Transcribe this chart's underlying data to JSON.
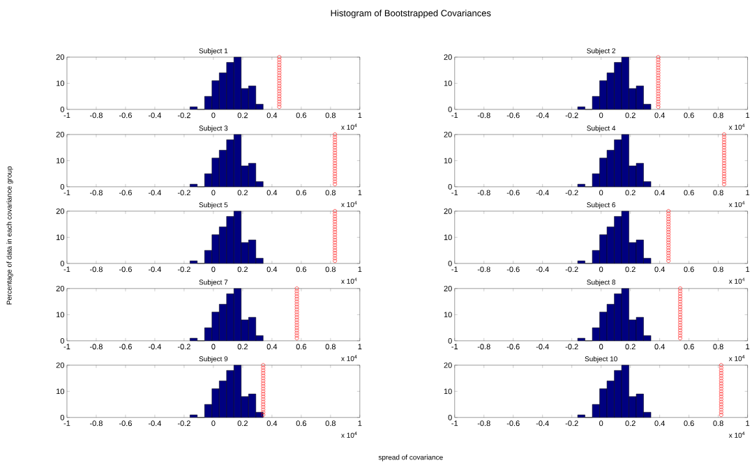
{
  "chart_data": [
    {
      "type": "other",
      "title": "Histogram of Bootstrapped Covariances",
      "xlabel": "spread of covariance",
      "ylabel": "Percentage of data in each covariance group"
    },
    {
      "type": "histogram",
      "title": "Subject 1",
      "bins": [
        -0.16,
        -0.11,
        -0.06,
        -0.01,
        0.04,
        0.09,
        0.14,
        0.19,
        0.24,
        0.29,
        0.34
      ],
      "values": [
        1,
        0,
        5,
        11,
        14,
        18,
        20,
        8,
        9,
        2
      ],
      "color": "#000080",
      "xlim": [
        -1,
        1
      ],
      "xticks": [
        -1,
        -0.8,
        -0.6,
        -0.4,
        -0.2,
        0,
        0.2,
        0.4,
        0.6,
        0.8,
        1
      ],
      "ylim": [
        0,
        20
      ],
      "yticks": [
        0,
        10,
        20
      ],
      "annotations": [
        "x 10$^{4}$"
      ],
      "series": [
        {
          "type": "scatter",
          "marker": "circle",
          "color": "#ff0000",
          "x": [
            0.45,
            0.45,
            0.45,
            0.45,
            0.45,
            0.45,
            0.45,
            0.45,
            0.45,
            0.45,
            0.45,
            0.45,
            0.45,
            0.45,
            0.45,
            0.45,
            0.45,
            0.45,
            0.45,
            0.45
          ],
          "values": [
            1,
            2,
            3,
            4,
            5,
            6,
            7,
            8,
            9,
            10,
            11,
            12,
            13,
            14,
            15,
            16,
            17,
            18,
            19,
            20
          ]
        }
      ]
    },
    {
      "type": "histogram",
      "title": "Subject 2",
      "bins": [
        -0.16,
        -0.11,
        -0.06,
        -0.01,
        0.04,
        0.09,
        0.14,
        0.19,
        0.24,
        0.29,
        0.34
      ],
      "values": [
        1,
        0,
        5,
        11,
        14,
        18,
        20,
        8,
        9,
        2
      ],
      "color": "#000080",
      "xlim": [
        -1,
        1
      ],
      "xticks": [
        -1,
        -0.8,
        -0.6,
        -0.4,
        -0.2,
        0,
        0.2,
        0.4,
        0.6,
        0.8,
        1
      ],
      "ylim": [
        0,
        20
      ],
      "yticks": [
        0,
        10,
        20
      ],
      "annotations": [
        "x 10$^{4}$"
      ],
      "series": [
        {
          "type": "scatter",
          "marker": "circle",
          "color": "#ff0000",
          "x": [
            0.39,
            0.39,
            0.39,
            0.39,
            0.39,
            0.39,
            0.39,
            0.39,
            0.39,
            0.39,
            0.39,
            0.39,
            0.39,
            0.39,
            0.39,
            0.39,
            0.39,
            0.39,
            0.39,
            0.39
          ],
          "values": [
            1,
            2,
            3,
            4,
            5,
            6,
            7,
            8,
            9,
            10,
            11,
            12,
            13,
            14,
            15,
            16,
            17,
            18,
            19,
            20
          ]
        }
      ]
    },
    {
      "type": "histogram",
      "title": "Subject 3",
      "bins": [
        -0.16,
        -0.11,
        -0.06,
        -0.01,
        0.04,
        0.09,
        0.14,
        0.19,
        0.24,
        0.29,
        0.34
      ],
      "values": [
        1,
        0,
        5,
        11,
        14,
        18,
        20,
        8,
        9,
        2
      ],
      "color": "#000080",
      "xlim": [
        -1,
        1
      ],
      "xticks": [
        -1,
        -0.8,
        -0.6,
        -0.4,
        -0.2,
        0,
        0.2,
        0.4,
        0.6,
        0.8,
        1
      ],
      "ylim": [
        0,
        20
      ],
      "yticks": [
        0,
        10,
        20
      ],
      "annotations": [
        "x 10$^{4}$"
      ],
      "series": [
        {
          "type": "scatter",
          "marker": "circle",
          "color": "#ff0000",
          "x": [
            0.83,
            0.83,
            0.83,
            0.83,
            0.83,
            0.83,
            0.83,
            0.83,
            0.83,
            0.83,
            0.83,
            0.83,
            0.83,
            0.83,
            0.83,
            0.83,
            0.83,
            0.83,
            0.83,
            0.83
          ],
          "values": [
            1,
            2,
            3,
            4,
            5,
            6,
            7,
            8,
            9,
            10,
            11,
            12,
            13,
            14,
            15,
            16,
            17,
            18,
            19,
            20
          ]
        }
      ]
    },
    {
      "type": "histogram",
      "title": "Subject 4",
      "bins": [
        -0.16,
        -0.11,
        -0.06,
        -0.01,
        0.04,
        0.09,
        0.14,
        0.19,
        0.24,
        0.29,
        0.34
      ],
      "values": [
        1,
        0,
        5,
        11,
        14,
        18,
        20,
        8,
        9,
        2
      ],
      "color": "#000080",
      "xlim": [
        -1,
        1
      ],
      "xticks": [
        -1,
        -0.8,
        -0.6,
        -0.4,
        -0.2,
        0,
        0.2,
        0.4,
        0.6,
        0.8,
        1
      ],
      "ylim": [
        0,
        20
      ],
      "yticks": [
        0,
        10,
        20
      ],
      "annotations": [
        "x 10$^{4}$"
      ],
      "series": [
        {
          "type": "scatter",
          "marker": "circle",
          "color": "#ff0000",
          "x": [
            0.84,
            0.84,
            0.84,
            0.84,
            0.84,
            0.84,
            0.84,
            0.84,
            0.84,
            0.84,
            0.84,
            0.84,
            0.84,
            0.84,
            0.84,
            0.84,
            0.84,
            0.84,
            0.84,
            0.84
          ],
          "values": [
            1,
            2,
            3,
            4,
            5,
            6,
            7,
            8,
            9,
            10,
            11,
            12,
            13,
            14,
            15,
            16,
            17,
            18,
            19,
            20
          ]
        }
      ]
    },
    {
      "type": "histogram",
      "title": "Subject 5",
      "bins": [
        -0.16,
        -0.11,
        -0.06,
        -0.01,
        0.04,
        0.09,
        0.14,
        0.19,
        0.24,
        0.29,
        0.34
      ],
      "values": [
        1,
        0,
        5,
        11,
        14,
        18,
        20,
        8,
        9,
        2
      ],
      "color": "#000080",
      "xlim": [
        -1,
        1
      ],
      "xticks": [
        -1,
        -0.8,
        -0.6,
        -0.4,
        -0.2,
        0,
        0.2,
        0.4,
        0.6,
        0.8,
        1
      ],
      "ylim": [
        0,
        20
      ],
      "yticks": [
        0,
        10,
        20
      ],
      "annotations": [
        "x 10$^{4}$"
      ],
      "series": [
        {
          "type": "scatter",
          "marker": "circle",
          "color": "#ff0000",
          "x": [
            0.83,
            0.83,
            0.83,
            0.83,
            0.83,
            0.83,
            0.83,
            0.83,
            0.83,
            0.83,
            0.83,
            0.83,
            0.83,
            0.83,
            0.83,
            0.83,
            0.83,
            0.83,
            0.83,
            0.83
          ],
          "values": [
            1,
            2,
            3,
            4,
            5,
            6,
            7,
            8,
            9,
            10,
            11,
            12,
            13,
            14,
            15,
            16,
            17,
            18,
            19,
            20
          ]
        }
      ]
    },
    {
      "type": "histogram",
      "title": "Subject 6",
      "bins": [
        -0.16,
        -0.11,
        -0.06,
        -0.01,
        0.04,
        0.09,
        0.14,
        0.19,
        0.24,
        0.29,
        0.34
      ],
      "values": [
        1,
        0,
        5,
        11,
        14,
        18,
        20,
        8,
        9,
        2
      ],
      "color": "#000080",
      "xlim": [
        -1,
        1
      ],
      "xticks": [
        -1,
        -0.8,
        -0.6,
        -0.4,
        -0.2,
        0,
        0.2,
        0.4,
        0.6,
        0.8,
        1
      ],
      "ylim": [
        0,
        20
      ],
      "yticks": [
        0,
        10,
        20
      ],
      "annotations": [
        "x 10$^{4}$"
      ],
      "series": [
        {
          "type": "scatter",
          "marker": "circle",
          "color": "#ff0000",
          "x": [
            0.46,
            0.46,
            0.46,
            0.46,
            0.46,
            0.46,
            0.46,
            0.46,
            0.46,
            0.46,
            0.46,
            0.46,
            0.46,
            0.46,
            0.46,
            0.46,
            0.46,
            0.46,
            0.46,
            0.46
          ],
          "values": [
            1,
            2,
            3,
            4,
            5,
            6,
            7,
            8,
            9,
            10,
            11,
            12,
            13,
            14,
            15,
            16,
            17,
            18,
            19,
            20
          ]
        }
      ]
    },
    {
      "type": "histogram",
      "title": "Subject 7",
      "bins": [
        -0.16,
        -0.11,
        -0.06,
        -0.01,
        0.04,
        0.09,
        0.14,
        0.19,
        0.24,
        0.29,
        0.34
      ],
      "values": [
        1,
        0,
        5,
        11,
        14,
        18,
        20,
        8,
        9,
        2
      ],
      "color": "#000080",
      "xlim": [
        -1,
        1
      ],
      "xticks": [
        -1,
        -0.8,
        -0.6,
        -0.4,
        -0.2,
        0,
        0.2,
        0.4,
        0.6,
        0.8,
        1
      ],
      "ylim": [
        0,
        20
      ],
      "yticks": [
        0,
        10,
        20
      ],
      "annotations": [
        "x 10$^{4}$"
      ],
      "series": [
        {
          "type": "scatter",
          "marker": "circle",
          "color": "#ff0000",
          "x": [
            0.57,
            0.57,
            0.57,
            0.57,
            0.57,
            0.57,
            0.57,
            0.57,
            0.57,
            0.57,
            0.57,
            0.57,
            0.57,
            0.57,
            0.57,
            0.57,
            0.57,
            0.57,
            0.57,
            0.57
          ],
          "values": [
            1,
            2,
            3,
            4,
            5,
            6,
            7,
            8,
            9,
            10,
            11,
            12,
            13,
            14,
            15,
            16,
            17,
            18,
            19,
            20
          ]
        }
      ]
    },
    {
      "type": "histogram",
      "title": "Subject 8",
      "bins": [
        -0.16,
        -0.11,
        -0.06,
        -0.01,
        0.04,
        0.09,
        0.14,
        0.19,
        0.24,
        0.29,
        0.34
      ],
      "values": [
        1,
        0,
        5,
        11,
        14,
        18,
        20,
        8,
        9,
        2
      ],
      "color": "#000080",
      "xlim": [
        -1,
        1
      ],
      "xticks": [
        -1,
        -0.8,
        -0.6,
        -0.4,
        -0.2,
        0,
        0.2,
        0.4,
        0.6,
        0.8,
        1
      ],
      "ylim": [
        0,
        20
      ],
      "yticks": [
        0,
        10,
        20
      ],
      "annotations": [
        "x 10$^{4}$"
      ],
      "series": [
        {
          "type": "scatter",
          "marker": "circle",
          "color": "#ff0000",
          "x": [
            0.54,
            0.54,
            0.54,
            0.54,
            0.54,
            0.54,
            0.54,
            0.54,
            0.54,
            0.54,
            0.54,
            0.54,
            0.54,
            0.54,
            0.54,
            0.54,
            0.54,
            0.54,
            0.54,
            0.54
          ],
          "values": [
            1,
            2,
            3,
            4,
            5,
            6,
            7,
            8,
            9,
            10,
            11,
            12,
            13,
            14,
            15,
            16,
            17,
            18,
            19,
            20
          ]
        }
      ]
    },
    {
      "type": "histogram",
      "title": "Subject 9",
      "bins": [
        -0.16,
        -0.11,
        -0.06,
        -0.01,
        0.04,
        0.09,
        0.14,
        0.19,
        0.24,
        0.29,
        0.34
      ],
      "values": [
        1,
        0,
        5,
        11,
        14,
        18,
        20,
        8,
        9,
        2
      ],
      "color": "#000080",
      "xlim": [
        -1,
        1
      ],
      "xticks": [
        -1,
        -0.8,
        -0.6,
        -0.4,
        -0.2,
        0,
        0.2,
        0.4,
        0.6,
        0.8,
        1
      ],
      "ylim": [
        0,
        20
      ],
      "yticks": [
        0,
        10,
        20
      ],
      "annotations": [
        "x 10$^{4}$"
      ],
      "series": [
        {
          "type": "scatter",
          "marker": "circle",
          "color": "#ff0000",
          "x": [
            0.34,
            0.34,
            0.34,
            0.34,
            0.34,
            0.34,
            0.34,
            0.34,
            0.34,
            0.34,
            0.34,
            0.34,
            0.34,
            0.34,
            0.34,
            0.34,
            0.34,
            0.34,
            0.34,
            0.34
          ],
          "values": [
            1,
            2,
            3,
            4,
            5,
            6,
            7,
            8,
            9,
            10,
            11,
            12,
            13,
            14,
            15,
            16,
            17,
            18,
            19,
            20
          ]
        }
      ]
    },
    {
      "type": "histogram",
      "title": "Subject 10",
      "bins": [
        -0.16,
        -0.11,
        -0.06,
        -0.01,
        0.04,
        0.09,
        0.14,
        0.19,
        0.24,
        0.29,
        0.34
      ],
      "values": [
        1,
        0,
        5,
        11,
        14,
        18,
        20,
        8,
        9,
        2
      ],
      "color": "#000080",
      "xlim": [
        -1,
        1
      ],
      "xticks": [
        -1,
        -0.8,
        -0.6,
        -0.4,
        -0.2,
        0,
        0.2,
        0.4,
        0.6,
        0.8,
        1
      ],
      "ylim": [
        0,
        20
      ],
      "yticks": [
        0,
        10,
        20
      ],
      "annotations": [
        "x 10$^{4}$"
      ],
      "series": [
        {
          "type": "scatter",
          "marker": "circle",
          "color": "#ff0000",
          "x": [
            0.82,
            0.82,
            0.82,
            0.82,
            0.82,
            0.82,
            0.82,
            0.82,
            0.82,
            0.82,
            0.82,
            0.82,
            0.82,
            0.82,
            0.82,
            0.82,
            0.82,
            0.82,
            0.82,
            0.82
          ],
          "values": [
            1,
            2,
            3,
            4,
            5,
            6,
            7,
            8,
            9,
            10,
            11,
            12,
            13,
            14,
            15,
            16,
            17,
            18,
            19,
            20
          ]
        }
      ]
    }
  ]
}
